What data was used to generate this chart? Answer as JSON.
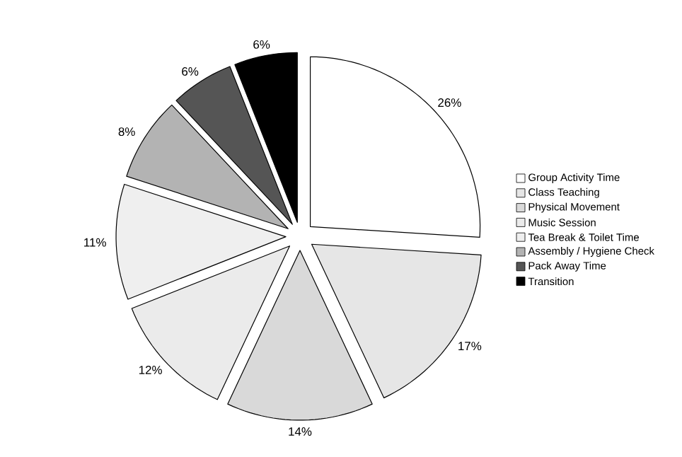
{
  "chart_data": {
    "type": "pie",
    "categories": [
      "Group Activity Time",
      "Class Teaching",
      "Physical Movement",
      "Music Session",
      "Tea Break & Toilet Time",
      "Assembly / Hygiene Check",
      "Pack Away Time",
      "Transition"
    ],
    "values": [
      26,
      17,
      14,
      12,
      11,
      8,
      6,
      6
    ],
    "value_labels": [
      "26%",
      "17%",
      "14%",
      "12%",
      "11%",
      "8%",
      "6%",
      "6%"
    ],
    "colors": [
      "#ffffff",
      "#e6e6e6",
      "#d9d9d9",
      "#ebebeb",
      "#efefef",
      "#b3b3b3",
      "#555555",
      "#000000"
    ],
    "legend": "right"
  }
}
